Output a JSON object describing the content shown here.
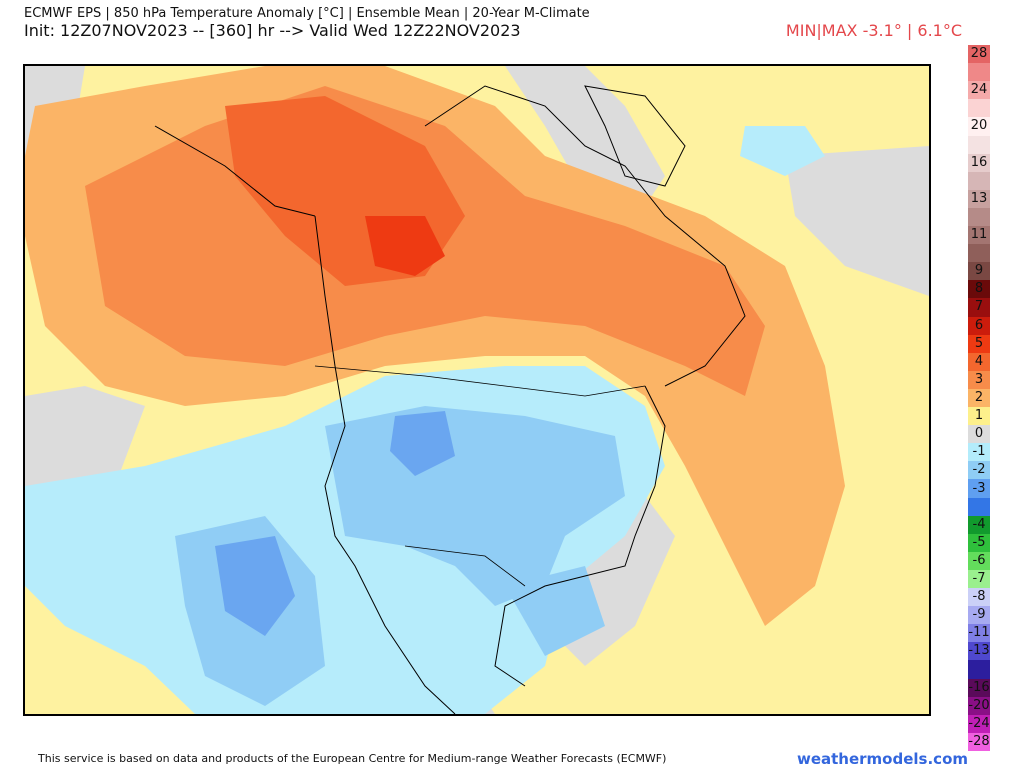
{
  "header": {
    "line1": "ECMWF EPS | 850 hPa Temperature Anomaly [°C] | Ensemble Mean | 20-Year M-Climate",
    "line2": "Init: 12Z07NOV2023 -- [360] hr --> Valid Wed 12Z22NOV2023",
    "minmax": "MIN|MAX -3.1° | 6.1°C"
  },
  "legend": {
    "entries": [
      {
        "label": "28",
        "color": "#e46464"
      },
      {
        "label": "",
        "color": "#ef8888"
      },
      {
        "label": "24",
        "color": "#f5aaaa"
      },
      {
        "label": "",
        "color": "#fbd3d3"
      },
      {
        "label": "20",
        "color": "#fff0f0"
      },
      {
        "label": "",
        "color": "#f4e2e2"
      },
      {
        "label": "16",
        "color": "#e6cccc"
      },
      {
        "label": "",
        "color": "#d6b6b6"
      },
      {
        "label": "13",
        "color": "#c7a19f"
      },
      {
        "label": "",
        "color": "#b58b88"
      },
      {
        "label": "11",
        "color": "#a37571"
      },
      {
        "label": "",
        "color": "#8f5f5a"
      },
      {
        "label": "9",
        "color": "#7a4843"
      },
      {
        "label": "8",
        "color": "#6a0a0a"
      },
      {
        "label": "7",
        "color": "#990e0e"
      },
      {
        "label": "6",
        "color": "#cc1c0c"
      },
      {
        "label": "5",
        "color": "#ee3a12"
      },
      {
        "label": "4",
        "color": "#f3672e"
      },
      {
        "label": "3",
        "color": "#f78c4a"
      },
      {
        "label": "2",
        "color": "#fbb466"
      },
      {
        "label": "1",
        "color": "#fdf08c"
      },
      {
        "label": "0",
        "color": "#dcdcdc"
      },
      {
        "label": "-1",
        "color": "#b3ecfb"
      },
      {
        "label": "-2",
        "color": "#8fcdf5"
      },
      {
        "label": "-3",
        "color": "#5f9ff0"
      },
      {
        "label": "",
        "color": "#3376e6"
      },
      {
        "label": "-4",
        "color": "#119a2d"
      },
      {
        "label": "-5",
        "color": "#2fc03c"
      },
      {
        "label": "-6",
        "color": "#63dd5c"
      },
      {
        "label": "-7",
        "color": "#9aef8e"
      },
      {
        "label": "-8",
        "color": "#cbd0f7"
      },
      {
        "label": "-9",
        "color": "#a7aaf1"
      },
      {
        "label": "-11",
        "color": "#7f7fe6"
      },
      {
        "label": "-13",
        "color": "#4f48cf"
      },
      {
        "label": "",
        "color": "#2c1e9e"
      },
      {
        "label": "-16",
        "color": "#5a0a5a"
      },
      {
        "label": "-20",
        "color": "#8a0f86"
      },
      {
        "label": "-24",
        "color": "#c020b6"
      },
      {
        "label": "-28",
        "color": "#f060e0"
      }
    ]
  },
  "footer": {
    "credit": "This service is based on data and products of the European Centre for Medium-range Weather Forecasts (ECMWF)",
    "brand": "weathermodels.com"
  }
}
